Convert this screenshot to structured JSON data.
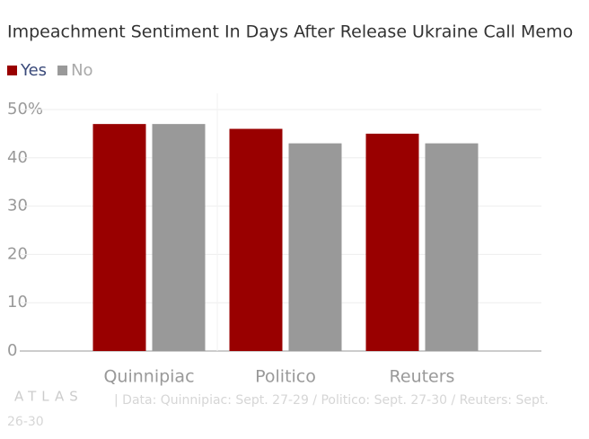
{
  "chart_data": {
    "type": "bar",
    "title": "Impeachment Sentiment In Days After Release Ukraine Call Memo",
    "categories": [
      "Quinnipiac",
      "Politico",
      "Reuters"
    ],
    "series": [
      {
        "name": "Yes",
        "color": "#990000",
        "values": [
          47,
          46,
          45
        ]
      },
      {
        "name": "No",
        "color": "#999999",
        "values": [
          47,
          43,
          43
        ]
      }
    ],
    "ylim": [
      0,
      50
    ],
    "yticks": [
      0,
      10,
      20,
      30,
      40,
      {
        "value": 50,
        "label": "50%"
      }
    ],
    "grid": true,
    "logo": "ATLAS",
    "source": "| Data: Quinnipiac: Sept. 27-29 / Politico: Sept. 27-30 / Reuters: Sept. 26-30"
  }
}
